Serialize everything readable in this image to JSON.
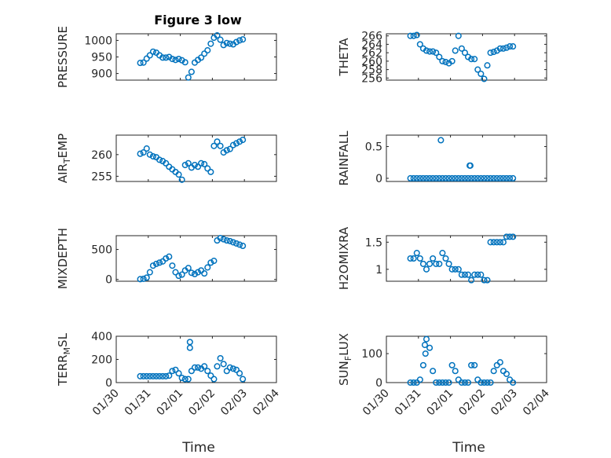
{
  "accent_color": "#0072bd",
  "figure_title": "Figure 3 low",
  "xlabel": "Time",
  "x_tick_labels": [
    "01/30",
    "01/31",
    "02/01",
    "02/02",
    "02/03",
    "02/04"
  ],
  "chart_data": [
    {
      "type": "scatter",
      "name": "PRESSURE",
      "ylabel": "PRESSURE",
      "title": "Figure 3 low",
      "xlim": [
        0,
        5
      ],
      "ylim": [
        880,
        1020
      ],
      "y_ticks": [
        900,
        950,
        1000
      ],
      "grid": "on",
      "x": [
        0.75,
        0.85,
        0.95,
        1.05,
        1.15,
        1.25,
        1.35,
        1.45,
        1.55,
        1.65,
        1.75,
        1.85,
        1.95,
        2.05,
        2.15,
        2.25,
        2.35,
        2.45,
        2.55,
        2.65,
        2.75,
        2.85,
        2.95,
        3.05,
        3.15,
        3.25,
        3.35,
        3.45,
        3.55,
        3.65,
        3.75,
        3.85,
        3.95
      ],
      "y": [
        932,
        933,
        945,
        955,
        966,
        963,
        955,
        948,
        948,
        950,
        944,
        941,
        944,
        940,
        934,
        888,
        905,
        933,
        941,
        948,
        960,
        970,
        990,
        1008,
        1015,
        1002,
        986,
        992,
        990,
        988,
        995,
        1000,
        1003
      ]
    },
    {
      "type": "scatter",
      "name": "THETA",
      "ylabel": "THETA",
      "xlim": [
        0,
        5
      ],
      "ylim": [
        255.5,
        266.5
      ],
      "y_ticks": [
        256,
        258,
        260,
        262,
        264,
        266
      ],
      "grid": "on",
      "x": [
        0.75,
        0.85,
        0.95,
        1.05,
        1.15,
        1.25,
        1.35,
        1.45,
        1.55,
        1.65,
        1.75,
        1.85,
        1.95,
        2.05,
        2.15,
        2.25,
        2.35,
        2.45,
        2.55,
        2.65,
        2.75,
        2.85,
        2.95,
        3.05,
        3.15,
        3.25,
        3.35,
        3.45,
        3.55,
        3.65,
        3.75,
        3.85,
        3.95
      ],
      "y": [
        266,
        266,
        266.2,
        264,
        263,
        262.5,
        262.3,
        262.3,
        262,
        261,
        260,
        259.8,
        259.5,
        260,
        262.5,
        266,
        263,
        262,
        261,
        260.5,
        260.5,
        258,
        257,
        255.8,
        259,
        262,
        262.2,
        262.5,
        263,
        263,
        263.2,
        263.5,
        263.5
      ]
    },
    {
      "type": "scatter",
      "name": "AIR_TEMP",
      "ylabel": "AIR_TEMP",
      "xlim": [
        0,
        5
      ],
      "ylim": [
        253.8,
        264.5
      ],
      "y_ticks": [
        255,
        260
      ],
      "grid": "on",
      "x": [
        0.75,
        0.85,
        0.95,
        1.05,
        1.15,
        1.25,
        1.35,
        1.45,
        1.55,
        1.65,
        1.75,
        1.85,
        1.95,
        2.05,
        2.15,
        2.25,
        2.35,
        2.45,
        2.55,
        2.65,
        2.75,
        2.85,
        2.95,
        3.05,
        3.15,
        3.25,
        3.35,
        3.45,
        3.55,
        3.65,
        3.75,
        3.85,
        3.95
      ],
      "y": [
        260.2,
        260.5,
        261.4,
        260,
        259.6,
        259.4,
        258.8,
        258.5,
        258,
        257.2,
        256.6,
        256,
        255.4,
        254.2,
        257.6,
        258,
        257,
        257.6,
        257.2,
        258,
        257.8,
        256.8,
        256,
        262,
        263,
        262,
        260.5,
        261,
        261.3,
        262.2,
        262.6,
        263,
        263.4
      ]
    },
    {
      "type": "scatter",
      "name": "RAINFALL",
      "ylabel": "RAINFALL",
      "xlim": [
        0,
        5
      ],
      "ylim": [
        -0.05,
        0.68
      ],
      "y_ticks": [
        0,
        0.5
      ],
      "grid": "on",
      "x": [
        0.75,
        0.85,
        0.95,
        1.05,
        1.15,
        1.25,
        1.35,
        1.45,
        1.55,
        1.65,
        1.75,
        1.85,
        1.95,
        2.05,
        2.15,
        2.25,
        2.35,
        2.45,
        2.55,
        2.65,
        2.75,
        2.85,
        2.95,
        3.05,
        3.15,
        3.25,
        3.35,
        3.45,
        3.55,
        3.65,
        3.75,
        3.85,
        3.95,
        1.7,
        2.6,
        2.62
      ],
      "y": [
        0,
        0,
        0,
        0,
        0,
        0,
        0,
        0,
        0,
        0,
        0,
        0,
        0,
        0,
        0,
        0,
        0,
        0,
        0,
        0,
        0,
        0,
        0,
        0,
        0,
        0,
        0,
        0,
        0,
        0,
        0,
        0,
        0,
        0.6,
        0.2,
        0.2
      ]
    },
    {
      "type": "scatter",
      "name": "MIXDEPTH",
      "ylabel": "MIXDEPTH",
      "xlim": [
        0,
        5
      ],
      "ylim": [
        -30,
        730
      ],
      "y_ticks": [
        0,
        500
      ],
      "grid": "on",
      "x": [
        0.75,
        0.85,
        0.95,
        1.05,
        1.15,
        1.25,
        1.35,
        1.45,
        1.55,
        1.65,
        1.75,
        1.85,
        1.95,
        2.05,
        2.15,
        2.25,
        2.35,
        2.45,
        2.55,
        2.65,
        2.75,
        2.85,
        2.95,
        3.05,
        3.15,
        3.25,
        3.35,
        3.45,
        3.55,
        3.65,
        3.75,
        3.85,
        3.95
      ],
      "y": [
        5,
        10,
        30,
        120,
        230,
        260,
        280,
        300,
        350,
        380,
        230,
        120,
        60,
        80,
        150,
        190,
        110,
        90,
        120,
        150,
        100,
        200,
        280,
        310,
        650,
        690,
        670,
        650,
        640,
        620,
        600,
        580,
        560
      ]
    },
    {
      "type": "scatter",
      "name": "H2OMIXRA",
      "ylabel": "H2OMIXRA",
      "xlim": [
        0,
        5
      ],
      "ylim": [
        0.78,
        1.62
      ],
      "y_ticks": [
        1,
        1.5
      ],
      "grid": "on",
      "x": [
        0.75,
        0.85,
        0.95,
        1.05,
        1.15,
        1.25,
        1.35,
        1.45,
        1.55,
        1.65,
        1.75,
        1.85,
        1.95,
        2.05,
        2.15,
        2.25,
        2.35,
        2.45,
        2.55,
        2.65,
        2.75,
        2.85,
        2.95,
        3.05,
        3.15,
        3.25,
        3.35,
        3.45,
        3.55,
        3.65,
        3.75,
        3.85,
        3.95
      ],
      "y": [
        1.2,
        1.2,
        1.3,
        1.2,
        1.1,
        1,
        1.1,
        1.2,
        1.1,
        1.1,
        1.3,
        1.2,
        1.1,
        1,
        1,
        1,
        0.9,
        0.9,
        0.9,
        0.8,
        0.9,
        0.9,
        0.9,
        0.8,
        0.8,
        1.5,
        1.5,
        1.5,
        1.5,
        1.5,
        1.6,
        1.6,
        1.6
      ]
    },
    {
      "type": "scatter",
      "name": "TERR_MSL",
      "ylabel": "TERR_MSL",
      "xlim": [
        0,
        5
      ],
      "ylim": [
        0,
        400
      ],
      "y_ticks": [
        0,
        200,
        400
      ],
      "grid": "on",
      "x": [
        0.75,
        0.85,
        0.95,
        1.05,
        1.15,
        1.25,
        1.35,
        1.45,
        1.55,
        1.65,
        1.75,
        1.85,
        1.95,
        2.05,
        2.15,
        2.25,
        2.35,
        2.45,
        2.55,
        2.65,
        2.75,
        2.85,
        2.95,
        3.05,
        3.15,
        3.25,
        3.35,
        3.45,
        3.55,
        3.65,
        3.75,
        3.85,
        3.95,
        2.3,
        2.3
      ],
      "y": [
        55,
        55,
        55,
        55,
        55,
        55,
        55,
        55,
        55,
        60,
        100,
        110,
        80,
        40,
        30,
        30,
        100,
        130,
        130,
        120,
        140,
        100,
        60,
        30,
        140,
        210,
        160,
        100,
        130,
        120,
        110,
        80,
        30,
        350,
        300
      ]
    },
    {
      "type": "scatter",
      "name": "SUN_FLUX",
      "ylabel": "SUN_FLUX",
      "xlim": [
        0,
        5
      ],
      "ylim": [
        0,
        160
      ],
      "y_ticks": [
        0,
        100
      ],
      "grid": "on",
      "x": [
        0.75,
        0.85,
        0.95,
        1.05,
        1.15,
        1.25,
        1.35,
        1.45,
        1.55,
        1.65,
        1.75,
        1.85,
        1.95,
        2.05,
        2.15,
        2.25,
        2.35,
        2.45,
        2.55,
        2.65,
        2.75,
        2.85,
        2.95,
        3.05,
        3.15,
        3.25,
        3.35,
        3.45,
        3.55,
        3.65,
        3.75,
        3.85,
        3.95,
        1.2,
        1.22
      ],
      "y": [
        0,
        0,
        0,
        10,
        60,
        150,
        120,
        40,
        0,
        0,
        0,
        0,
        0,
        60,
        40,
        10,
        0,
        0,
        0,
        60,
        60,
        10,
        0,
        0,
        0,
        0,
        40,
        60,
        70,
        40,
        30,
        10,
        0,
        130,
        100
      ]
    }
  ]
}
